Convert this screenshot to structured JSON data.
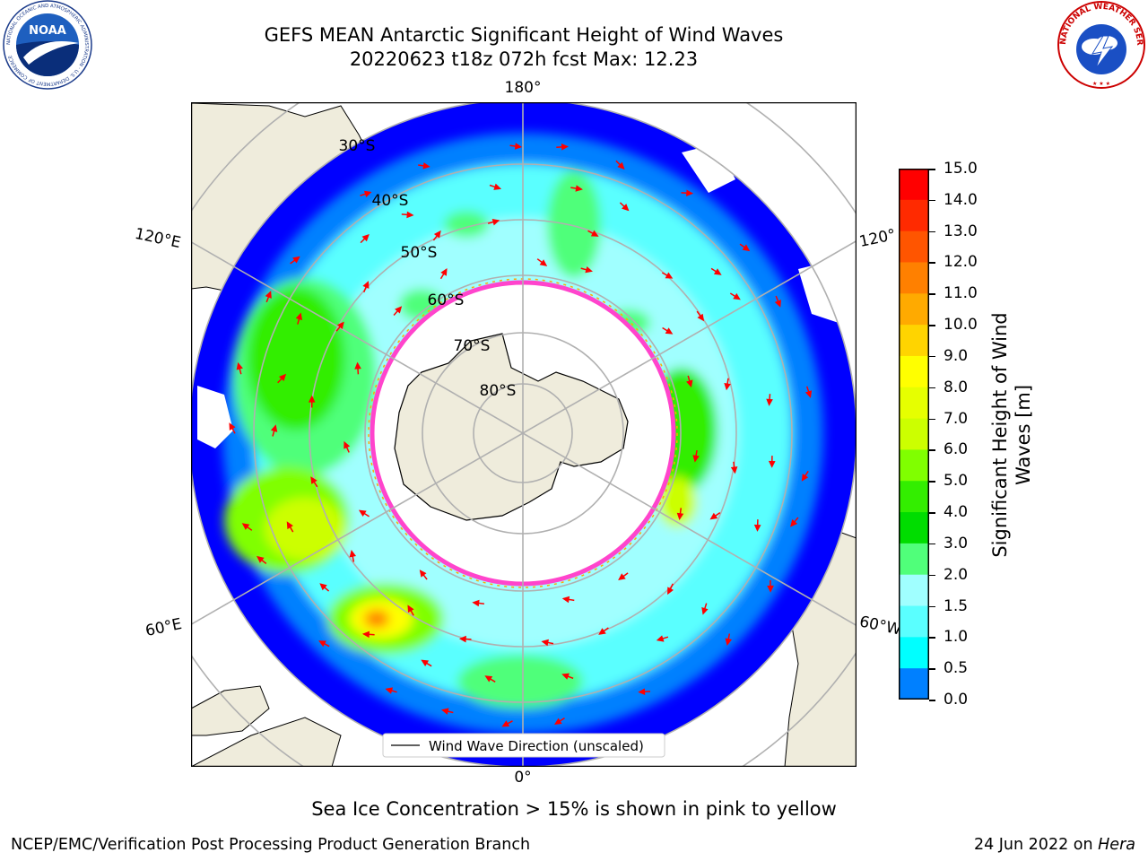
{
  "title_line1": "GEFS MEAN Antarctic Significant Height of Wind Waves",
  "title_line2": "20220623 t18z 072h fcst   Max: 12.23",
  "longitude_labels": {
    "top": "180°",
    "bottom": "0°",
    "upper_left": "120°E",
    "upper_right": "120°",
    "lower_left": "60°E",
    "lower_right": "60°W"
  },
  "latitude_labels": [
    "30°S",
    "40°S",
    "50°S",
    "60°S",
    "70°S",
    "80°S"
  ],
  "legend_text": "Wind Wave Direction (unscaled)",
  "colorbar": {
    "label": "Significant Height of Wind Waves [m]",
    "label_line1": "Significant Height of Wind",
    "label_line2": "Waves [m]",
    "ticks": [
      "15.0",
      "14.0",
      "13.0",
      "12.0",
      "11.0",
      "10.0",
      "9.0",
      "8.0",
      "7.0",
      "6.0",
      "5.0",
      "4.0",
      "3.0",
      "2.0",
      "1.5",
      "1.0",
      "0.5",
      "0.0"
    ],
    "colors": [
      "#ff0000",
      "#ff2a00",
      "#ff5500",
      "#ff8000",
      "#ffaa00",
      "#ffd400",
      "#ffff00",
      "#e6ff00",
      "#ccff00",
      "#80ff00",
      "#33ee00",
      "#00dd00",
      "#50ff7a",
      "#a0ffff",
      "#5affff",
      "#00ffff",
      "#0080ff",
      "#0000ff"
    ]
  },
  "note": "Sea Ice Concentration > 15% is shown in pink to yellow",
  "footer_left": "NCEP/EMC/Verification Post Processing Product Generation Branch",
  "footer_right_prefix": "24 Jun 2022 on ",
  "footer_right_host": "Hera",
  "logos": {
    "noaa_text": "NOAA",
    "noaa_ring": "NATIONAL OCEANIC AND ATMOSPHERIC ADMINISTRATION · U.S. DEPARTMENT OF COMMERCE",
    "nws_ring": "NATIONAL WEATHER SERVICE"
  },
  "map_colors": {
    "ocean_base": "#a0ffff",
    "land": "#efecdc",
    "ice": "#ffffff",
    "ice_edge": "#ff44cc",
    "arrow": "#ff0000",
    "grid": "#b0b0b0"
  }
}
